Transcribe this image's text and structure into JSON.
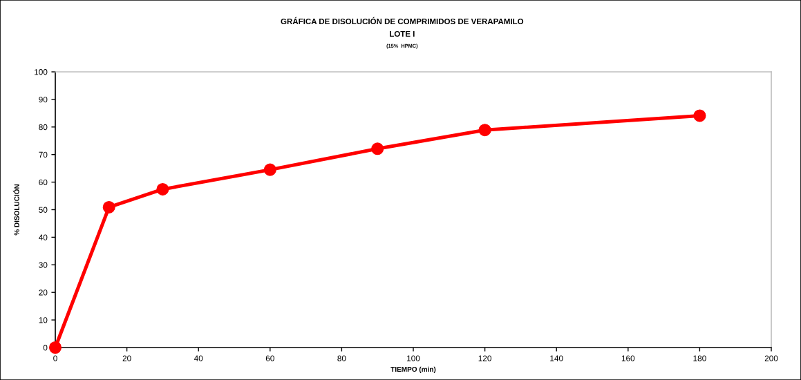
{
  "chart_data": {
    "type": "line",
    "title": "GRÁFICA DE DISOLUCIÓN DE COMPRIMIDOS DE VERAPAMILO",
    "subtitle": "LOTE I",
    "annotations": [
      "(15%  HPMC)"
    ],
    "xlabel": "TIEMPO (min)",
    "ylabel": "% DISOLUCIÓN",
    "x": [
      0,
      15,
      30,
      60,
      90,
      120,
      180
    ],
    "series": [
      {
        "color": "#ff0000",
        "values": [
          0,
          50.9,
          57.4,
          64.5,
          72.1,
          78.9,
          84.1
        ]
      }
    ],
    "xlim": [
      0,
      200
    ],
    "xticks": [
      0,
      20,
      40,
      60,
      80,
      100,
      120,
      140,
      160,
      180,
      200
    ],
    "ylim": [
      0,
      100
    ],
    "yticks": [
      0,
      10,
      20,
      30,
      40,
      50,
      60,
      70,
      80,
      90,
      100
    ],
    "grid": false,
    "marker": "circle",
    "line_style": "solid"
  }
}
